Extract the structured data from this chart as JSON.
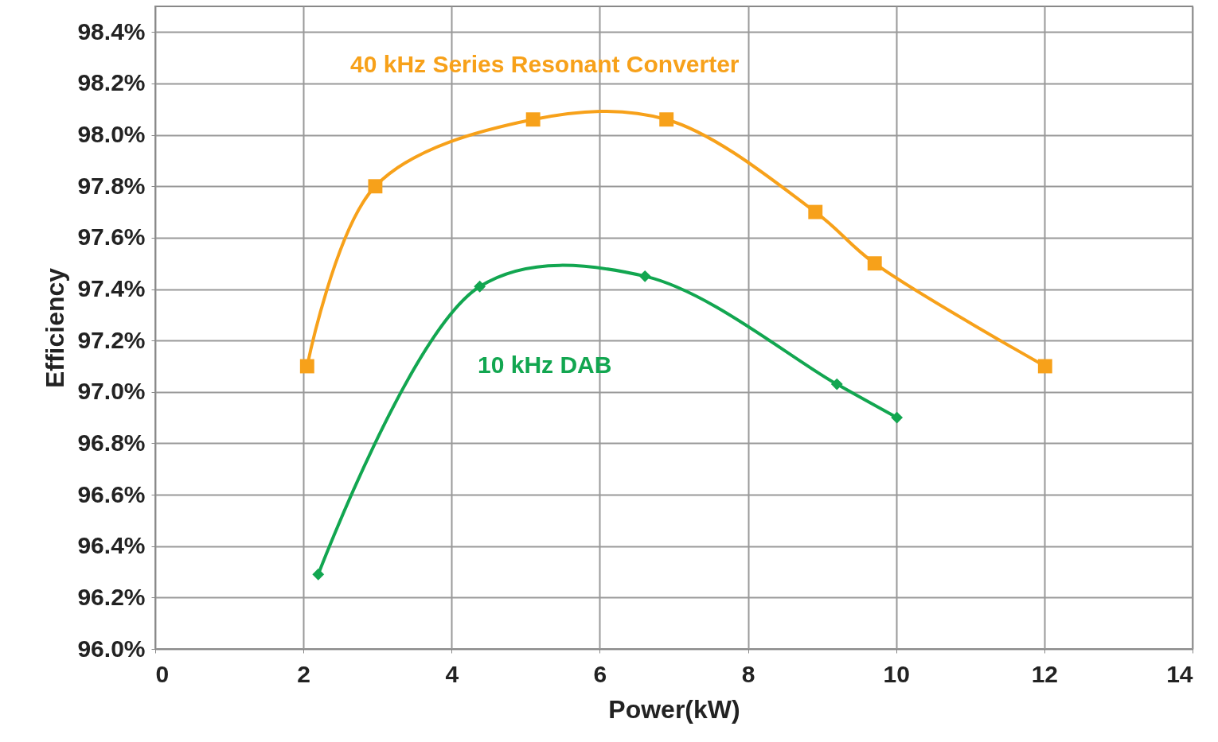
{
  "chart_data": {
    "type": "line",
    "xlabel": "Power(kW)",
    "ylabel": "Efficiency",
    "xlim": [
      0,
      14
    ],
    "xticks": [
      0,
      2,
      4,
      6,
      8,
      10,
      12,
      14
    ],
    "ylim": [
      96,
      98.5
    ],
    "yticks": [
      {
        "value": 96,
        "label": "96.0%"
      },
      {
        "value": 96.2,
        "label": "96.2%"
      },
      {
        "value": 96.4,
        "label": "96.4%"
      },
      {
        "value": 96.6,
        "label": "96.6%"
      },
      {
        "value": 96.8,
        "label": "96.8%"
      },
      {
        "value": 97,
        "label": "97.0%"
      },
      {
        "value": 97.2,
        "label": "97.2%"
      },
      {
        "value": 97.4,
        "label": "97.4%"
      },
      {
        "value": 97.6,
        "label": "97.6%"
      },
      {
        "value": 97.8,
        "label": "97.8%"
      },
      {
        "value": 98,
        "label": "98.0%"
      },
      {
        "value": 98.2,
        "label": "98.2%"
      },
      {
        "value": 98.4,
        "label": "98.4%"
      }
    ],
    "grid": true,
    "series": [
      {
        "name": "40 kHz Series Resonant Converter",
        "color": "#f7a11a",
        "marker": "square",
        "x": [
          2.05,
          2.97,
          5.1,
          6.9,
          8.91,
          9.71,
          12.01
        ],
        "values": [
          97.1,
          97.8,
          98.06,
          98.06,
          97.7,
          97.5,
          97.1
        ]
      },
      {
        "name": "10 kHz DAB",
        "color": "#12a650",
        "marker": "diamond",
        "x": [
          2.2,
          4.38,
          6.61,
          9.2,
          10.01
        ],
        "values": [
          96.29,
          97.41,
          97.45,
          97.03,
          96.9
        ]
      }
    ]
  }
}
